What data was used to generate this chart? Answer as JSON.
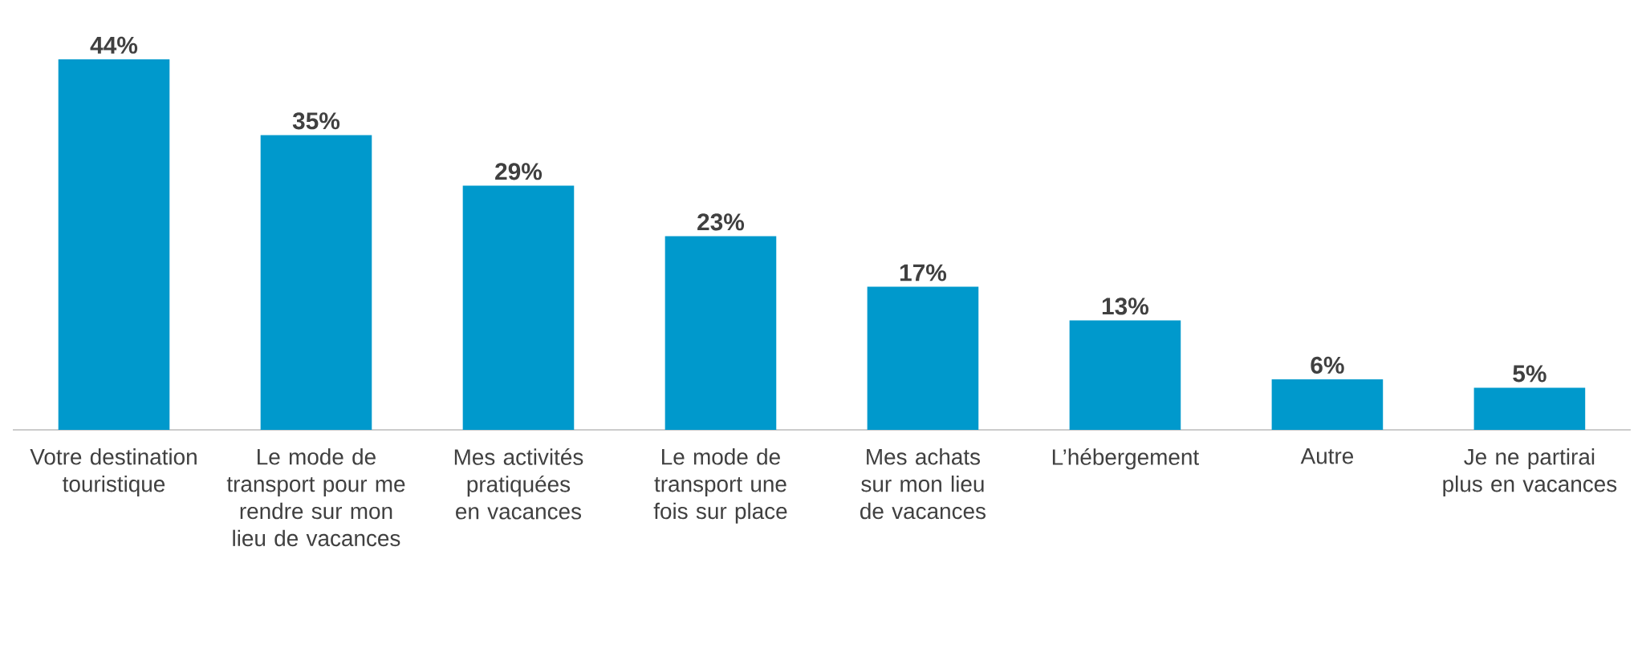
{
  "chart_data": {
    "type": "bar",
    "categories": [
      "Votre destination touristique",
      "Le mode de transport pour me rendre sur mon lieu de vacances",
      "Mes activités pratiquées en vacances",
      "Le mode de transport une fois sur place",
      "Mes achats sur mon lieu de vacances",
      "L’hébergement",
      "Autre",
      "Je ne partirai plus en vacances"
    ],
    "values": [
      44,
      35,
      29,
      23,
      17,
      13,
      6,
      5
    ],
    "value_labels": [
      "44%",
      "35%",
      "29%",
      "23%",
      "17%",
      "13%",
      "6%",
      "5%"
    ],
    "color": "#0099cc"
  }
}
